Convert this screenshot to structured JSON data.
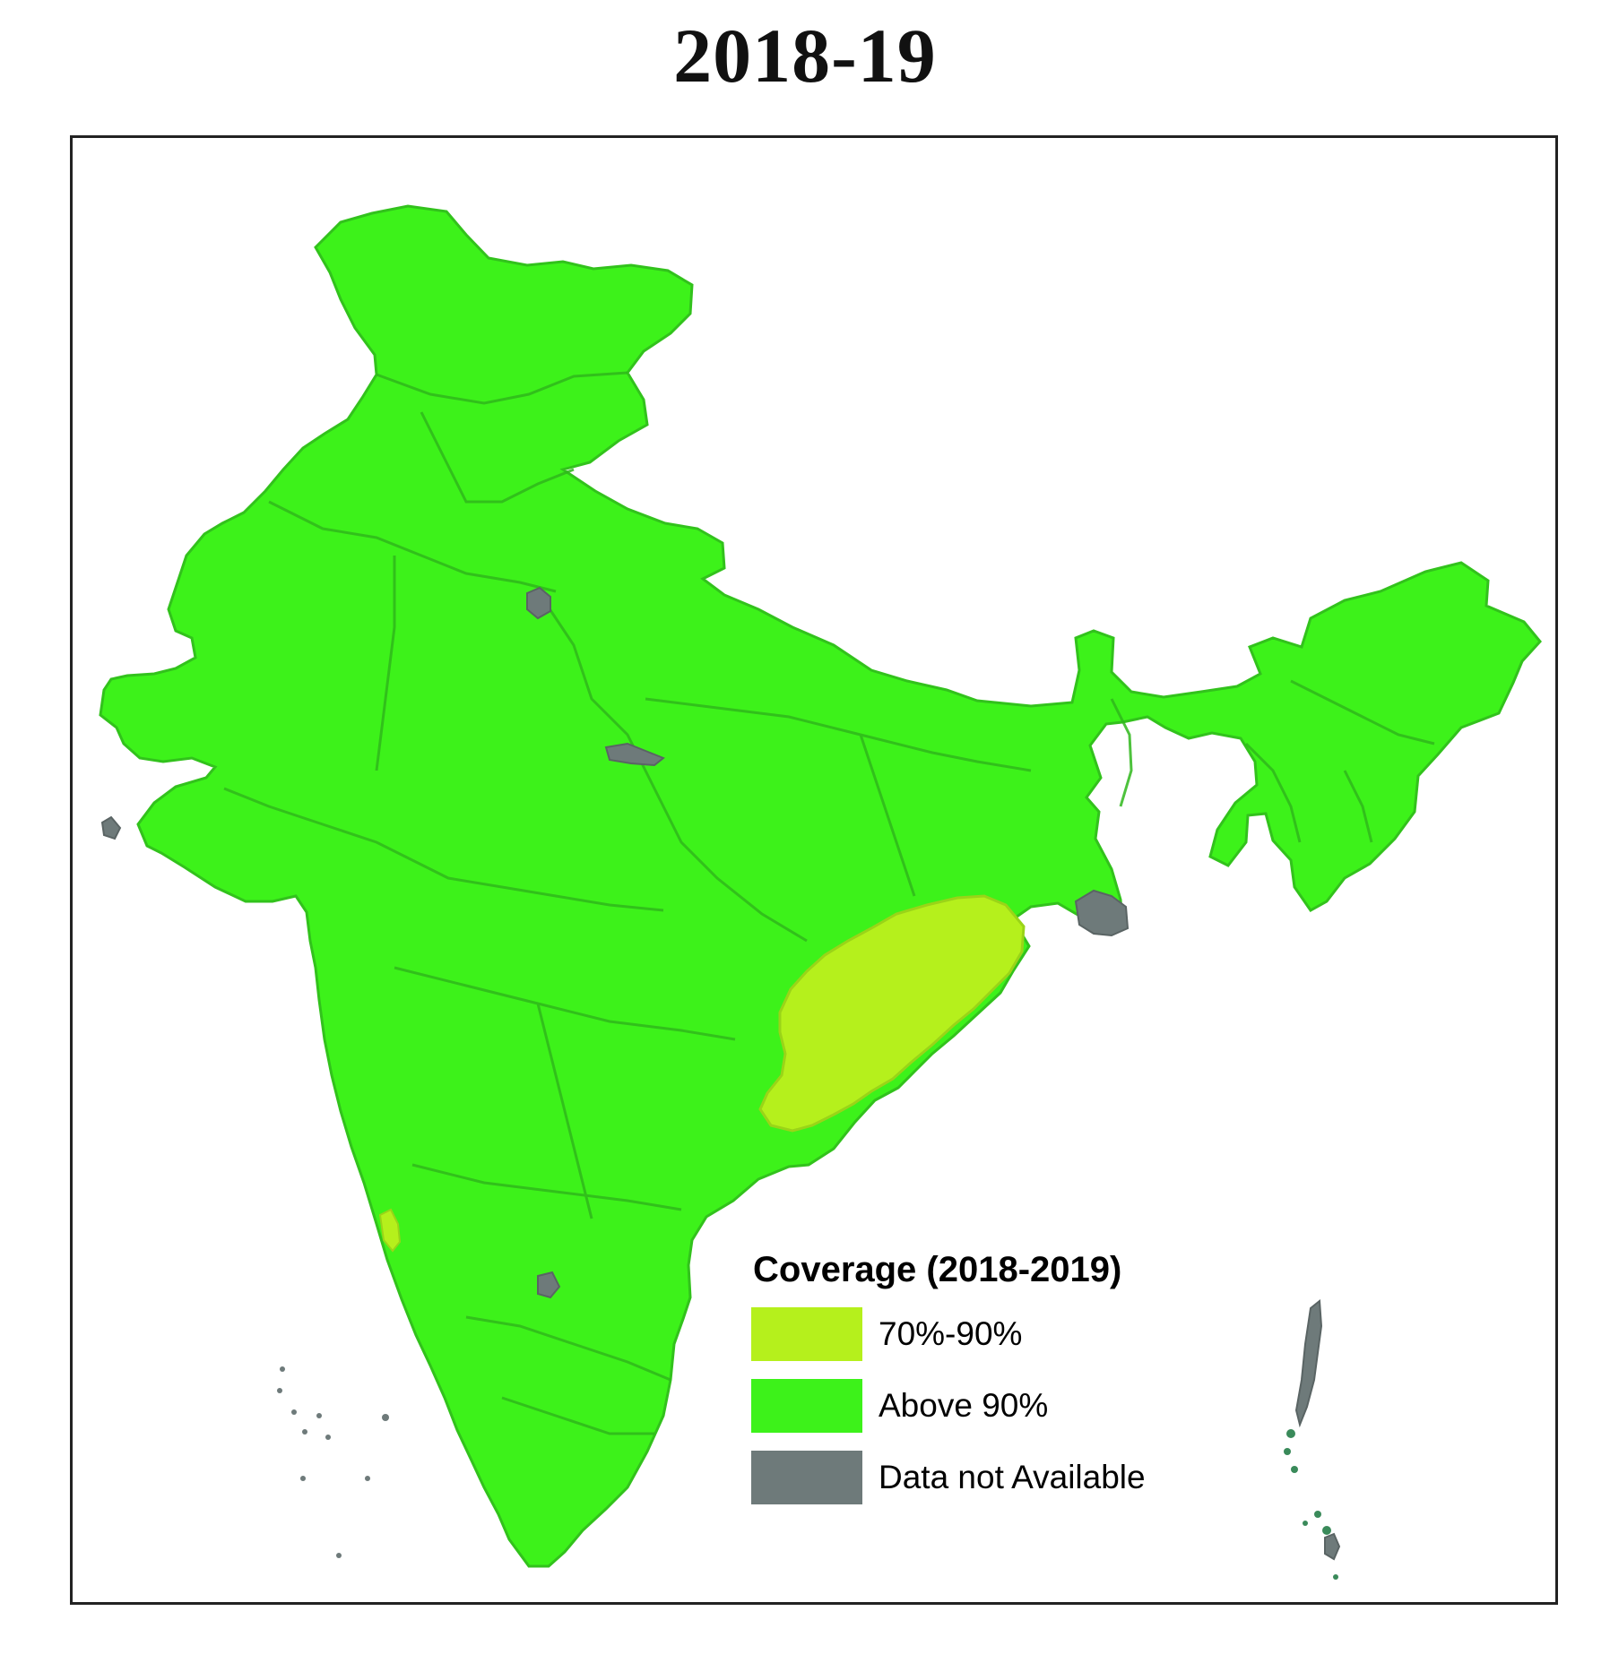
{
  "title": "2018-19",
  "legend": {
    "title": "Coverage (2018-2019)",
    "items": [
      {
        "label": "70%-90%",
        "color": "#b5f01c"
      },
      {
        "label": "Above 90%",
        "color": "#3df21a"
      },
      {
        "label": "Data not Available",
        "color": "#6e7a7a"
      }
    ]
  },
  "colors": {
    "land": "#3df21a",
    "boundary": "#2fb020",
    "highlight": "#b5f01c",
    "no_data": "#6e7a7a",
    "frame": "#222222"
  }
}
